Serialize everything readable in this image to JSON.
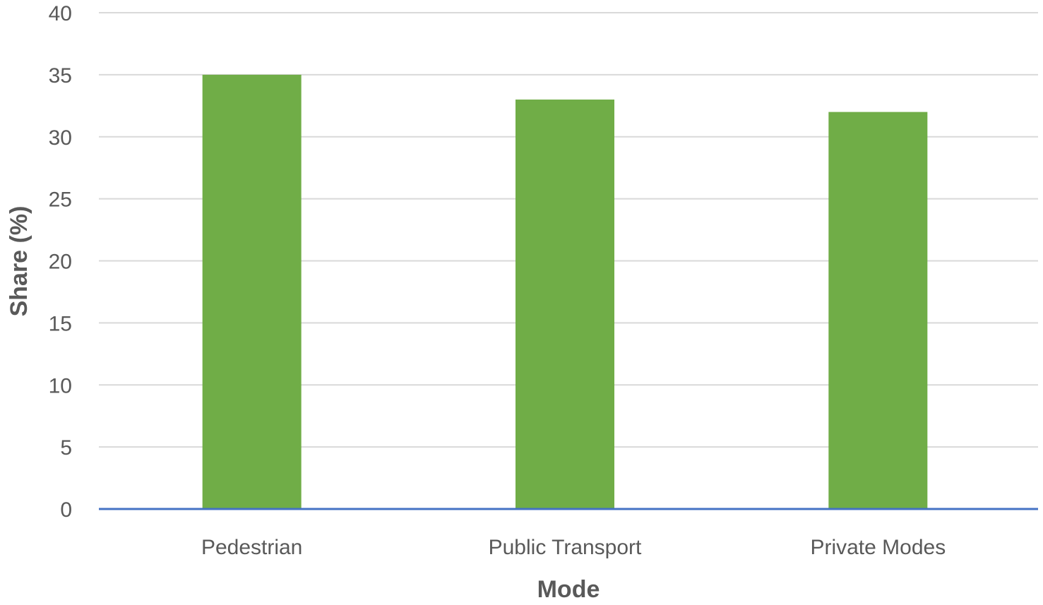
{
  "chart_data": {
    "type": "bar",
    "categories": [
      "Pedestrian",
      "Public Transport",
      "Private Modes"
    ],
    "values": [
      35,
      33,
      32
    ],
    "title": "",
    "xlabel": "Mode",
    "ylabel": "Share (%)",
    "ylim": [
      0,
      40
    ],
    "yticks": [
      0,
      5,
      10,
      15,
      20,
      25,
      30,
      35,
      40
    ],
    "grid": true,
    "legend": "none",
    "colors": {
      "bar": "#70ad47",
      "baseline": "#4472c4",
      "gridline": "#d9d9d9",
      "text": "#595959"
    }
  }
}
